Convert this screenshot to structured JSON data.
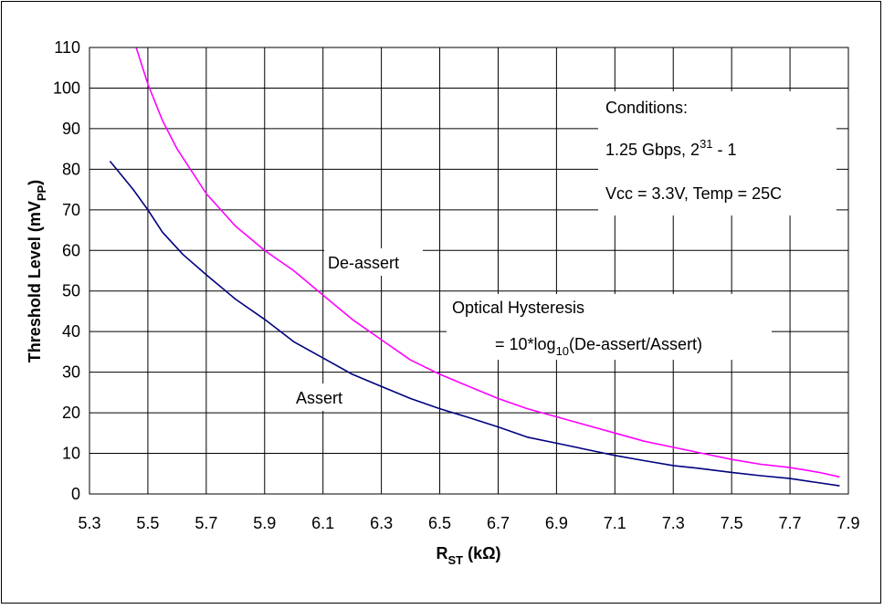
{
  "chart_data": {
    "type": "line",
    "title": "",
    "xlabel": {
      "main": "R",
      "sub": "ST",
      "tail": " (kΩ)"
    },
    "ylabel": {
      "main": "Threshold Level (mV",
      "sub": "PP",
      "tail": ")"
    },
    "xlim": [
      5.3,
      7.9
    ],
    "ylim": [
      0,
      110
    ],
    "xticks": [
      "5.3",
      "5.5",
      "5.7",
      "5.9",
      "6.1",
      "6.3",
      "6.5",
      "6.7",
      "6.9",
      "7.1",
      "7.3",
      "7.5",
      "7.7",
      "7.9"
    ],
    "yticks": [
      "0",
      "10",
      "20",
      "30",
      "40",
      "50",
      "60",
      "70",
      "80",
      "90",
      "100",
      "110"
    ],
    "grid": true,
    "series": [
      {
        "name": "De-assert",
        "color": "#ff00ff",
        "points": [
          [
            5.46,
            110
          ],
          [
            5.5,
            101
          ],
          [
            5.55,
            92
          ],
          [
            5.6,
            85
          ],
          [
            5.7,
            74
          ],
          [
            5.8,
            66
          ],
          [
            5.9,
            60
          ],
          [
            6.0,
            55
          ],
          [
            6.1,
            49
          ],
          [
            6.2,
            43
          ],
          [
            6.3,
            38
          ],
          [
            6.4,
            33
          ],
          [
            6.5,
            29.5
          ],
          [
            6.6,
            26.5
          ],
          [
            6.7,
            23.5
          ],
          [
            6.8,
            21
          ],
          [
            6.9,
            19
          ],
          [
            7.0,
            17
          ],
          [
            7.1,
            15
          ],
          [
            7.2,
            13
          ],
          [
            7.3,
            11.5
          ],
          [
            7.4,
            10
          ],
          [
            7.5,
            8.5
          ],
          [
            7.6,
            7.3
          ],
          [
            7.7,
            6.5
          ],
          [
            7.8,
            5.3
          ],
          [
            7.87,
            4.2
          ]
        ]
      },
      {
        "name": "Assert",
        "color": "#000080",
        "points": [
          [
            5.37,
            82
          ],
          [
            5.45,
            75
          ],
          [
            5.5,
            70
          ],
          [
            5.55,
            64.5
          ],
          [
            5.62,
            59
          ],
          [
            5.7,
            54
          ],
          [
            5.8,
            48
          ],
          [
            5.9,
            43
          ],
          [
            6.0,
            37.5
          ],
          [
            6.1,
            33.5
          ],
          [
            6.2,
            29.5
          ],
          [
            6.3,
            26.5
          ],
          [
            6.4,
            23.5
          ],
          [
            6.5,
            21
          ],
          [
            6.6,
            18.8
          ],
          [
            6.7,
            16.5
          ],
          [
            6.8,
            14
          ],
          [
            6.9,
            12.5
          ],
          [
            7.0,
            11
          ],
          [
            7.1,
            9.5
          ],
          [
            7.2,
            8.2
          ],
          [
            7.3,
            7
          ],
          [
            7.4,
            6.2
          ],
          [
            7.5,
            5.3
          ],
          [
            7.6,
            4.5
          ],
          [
            7.7,
            3.8
          ],
          [
            7.87,
            2
          ]
        ]
      }
    ],
    "annotations": {
      "deassert_label": "De-assert",
      "assert_label": "Assert",
      "hysteresis_line1": "Optical Hysteresis",
      "hysteresis_line2": {
        "pre": "= 10*log",
        "sub": "10",
        "post": "(De-assert/Assert)"
      },
      "conditions_title": "Conditions:",
      "conditions_rate": {
        "pre": "1.25 Gbps, 2",
        "sup": "31",
        "post": " - 1"
      },
      "conditions_env": "Vcc = 3.3V, Temp = 25C"
    }
  }
}
